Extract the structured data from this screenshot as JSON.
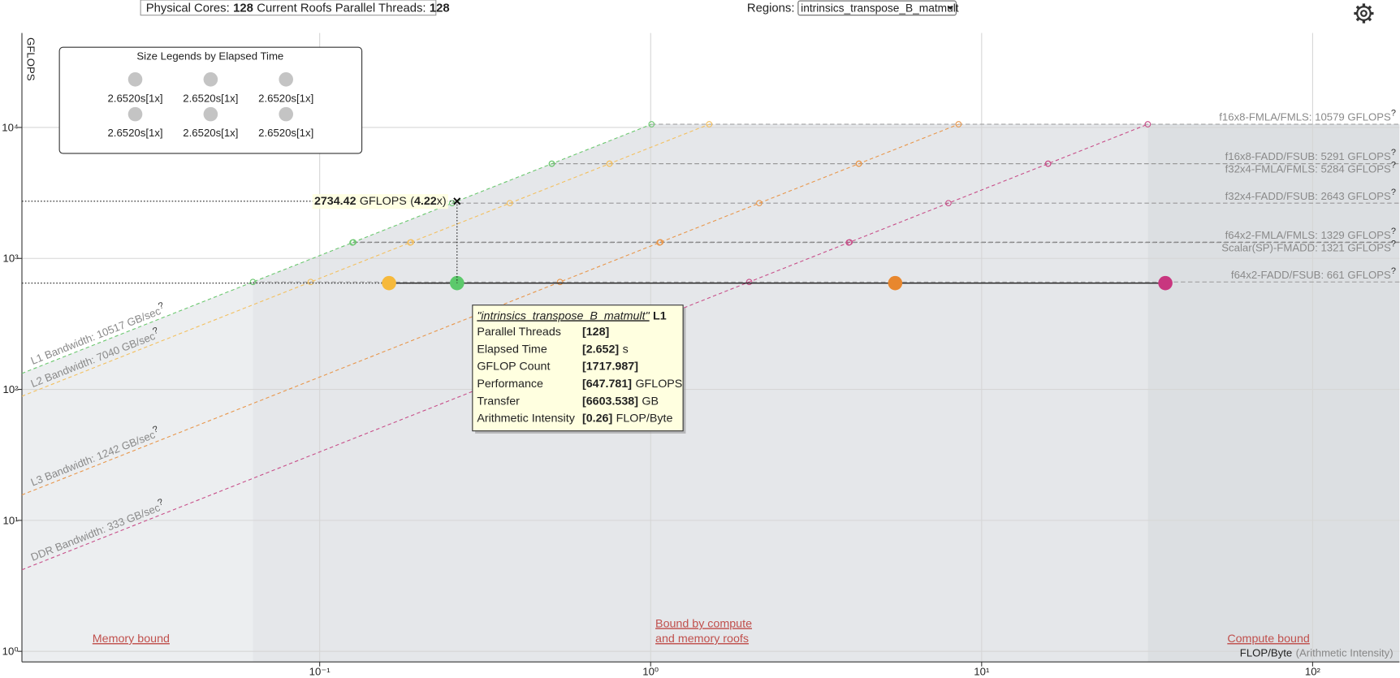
{
  "header": {
    "cores_label": "Physical Cores:",
    "cores": 128,
    "threads_label": "Current Roofs Parallel Threads:",
    "threads": 128,
    "regions_label": "Regions:",
    "region": "intrinsics_transpose_B_matmult"
  },
  "legend": {
    "title": "Size Legends by Elapsed Time",
    "items": [
      "2.6520s[1x]",
      "2.6520s[1x]",
      "2.6520s[1x]",
      "2.6520s[1x]",
      "2.6520s[1x]",
      "2.6520s[1x]"
    ]
  },
  "tooltip": {
    "name": "\"intrinsics_transpose_B_matmult\"",
    "level": "L1",
    "rows": [
      {
        "label": "Parallel Threads",
        "value": "[128]"
      },
      {
        "label": "Elapsed Time",
        "value": "[2.652]",
        "unit": "s"
      },
      {
        "label": "GFLOP Count",
        "value": "[1717.987]"
      },
      {
        "label": "Performance",
        "value": "[647.781]",
        "unit": "GFLOPS"
      },
      {
        "label": "Transfer",
        "value": "[6603.538]",
        "unit": "GB"
      },
      {
        "label": "Arithmetic Intensity",
        "value": "[0.26]",
        "unit": "FLOP/Byte"
      }
    ]
  },
  "chart_data": {
    "type": "roofline",
    "y_label": "GFLOPS",
    "x_label": "FLOP/Byte",
    "x_label_note": "(Arithmetic Intensity)",
    "log_x": true,
    "log_y": true,
    "grid": true,
    "xlim": [
      0.0126,
      183
    ],
    "ylim": [
      0.83,
      52600
    ],
    "xticks": [
      {
        "value": 0.1,
        "label": "10⁻¹"
      },
      {
        "value": 1,
        "label": "10⁰"
      },
      {
        "value": 10,
        "label": "10¹"
      },
      {
        "value": 100,
        "label": "10²"
      }
    ],
    "yticks": [
      {
        "value": 1,
        "label": "10⁰"
      },
      {
        "value": 10,
        "label": "10¹"
      },
      {
        "value": 100,
        "label": "10²"
      },
      {
        "value": 1000,
        "label": "10³"
      },
      {
        "value": 10000,
        "label": "10⁴"
      }
    ],
    "help_mark": "?",
    "memory_roofs": [
      {
        "label": "L1 Bandwidth: 10517 GB/sec",
        "value": 10517,
        "color": "#6cc870"
      },
      {
        "label": "L2 Bandwidth: 7040 GB/sec",
        "value": 7040,
        "color": "#f3c060"
      },
      {
        "label": "L3 Bandwidth: 1242 GB/sec",
        "value": 1242,
        "color": "#e8974c"
      },
      {
        "label": "DDR Bandwidth: 333 GB/sec",
        "value": 333,
        "color": "#c8508a"
      }
    ],
    "compute_roofs": [
      {
        "label": "f16x8-FMLA/FMLS: 10579 GFLOPS",
        "value": 10579
      },
      {
        "label": "f16x8-FADD/FSUB: 5291 GFLOPS",
        "value": 5291
      },
      {
        "label": "f32x4-FMLA/FMLS: 5284 GFLOPS",
        "value": 5284
      },
      {
        "label": "f32x4-FADD/FSUB: 2643 GFLOPS",
        "value": 2643
      },
      {
        "label": "f64x2-FMLA/FMLS: 1329 GFLOPS",
        "value": 1329
      },
      {
        "label": "Scalar(SP)-FMADD: 1321 GFLOPS",
        "value": 1321
      },
      {
        "label": "f64x2-FADD/FSUB: 661 GFLOPS",
        "value": 661
      }
    ],
    "points": {
      "x": [
        0.162,
        0.26,
        5.48,
        35.9
      ],
      "values": [
        647.781,
        647.781,
        647.781,
        647.781
      ],
      "colors": [
        "#f6b93b",
        "#5cc96b",
        "#e8872e",
        "#c8367f"
      ]
    },
    "annotation": {
      "value": 2734.42,
      "unit": "GFLOPS",
      "ratio_prefix": "(",
      "ratio": 4.22,
      "ratio_suffix": "x)"
    },
    "regions": {
      "memory": "Memory bound",
      "mixed": [
        "Bound by compute",
        "and memory roofs"
      ],
      "compute": "Compute bound"
    }
  }
}
